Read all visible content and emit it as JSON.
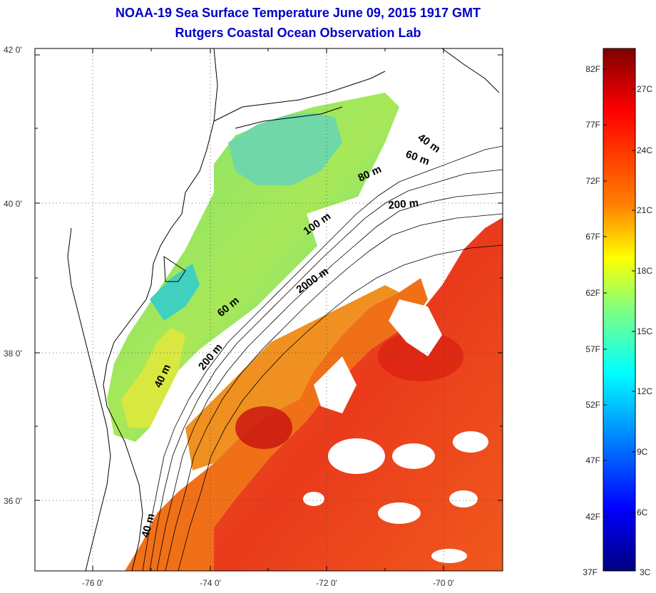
{
  "title": {
    "line1": "NOAA-19 Sea Surface Temperature June 09, 2015 1917 GMT",
    "line2": "Rutgers Coastal Ocean Observation Lab"
  },
  "map": {
    "lat_ticks": [
      "42 0'",
      "40 0'",
      "38 0'",
      "36 0'"
    ],
    "lon_ticks": [
      "-76 0'",
      "-74 0'",
      "-72 0'",
      "-70 0'"
    ],
    "contour_labels": [
      "40 m",
      "60 m",
      "80 m",
      "200 m",
      "100 m",
      "2000 m",
      "60 m",
      "200 m",
      "40 m",
      "40 m"
    ]
  },
  "colorbar": {
    "fahrenheit_labels": [
      "82F",
      "77F",
      "72F",
      "67F",
      "62F",
      "57F",
      "52F",
      "47F",
      "42F",
      "37F"
    ],
    "celsius_labels": [
      "27C",
      "24C",
      "21C",
      "18C",
      "15C",
      "12C",
      "9C",
      "6C",
      "3C"
    ],
    "colors": [
      "#7f0000",
      "#ff0000",
      "#ff8000",
      "#ffff00",
      "#80ff80",
      "#00ffff",
      "#0080ff",
      "#0000ff",
      "#00007f"
    ]
  }
}
